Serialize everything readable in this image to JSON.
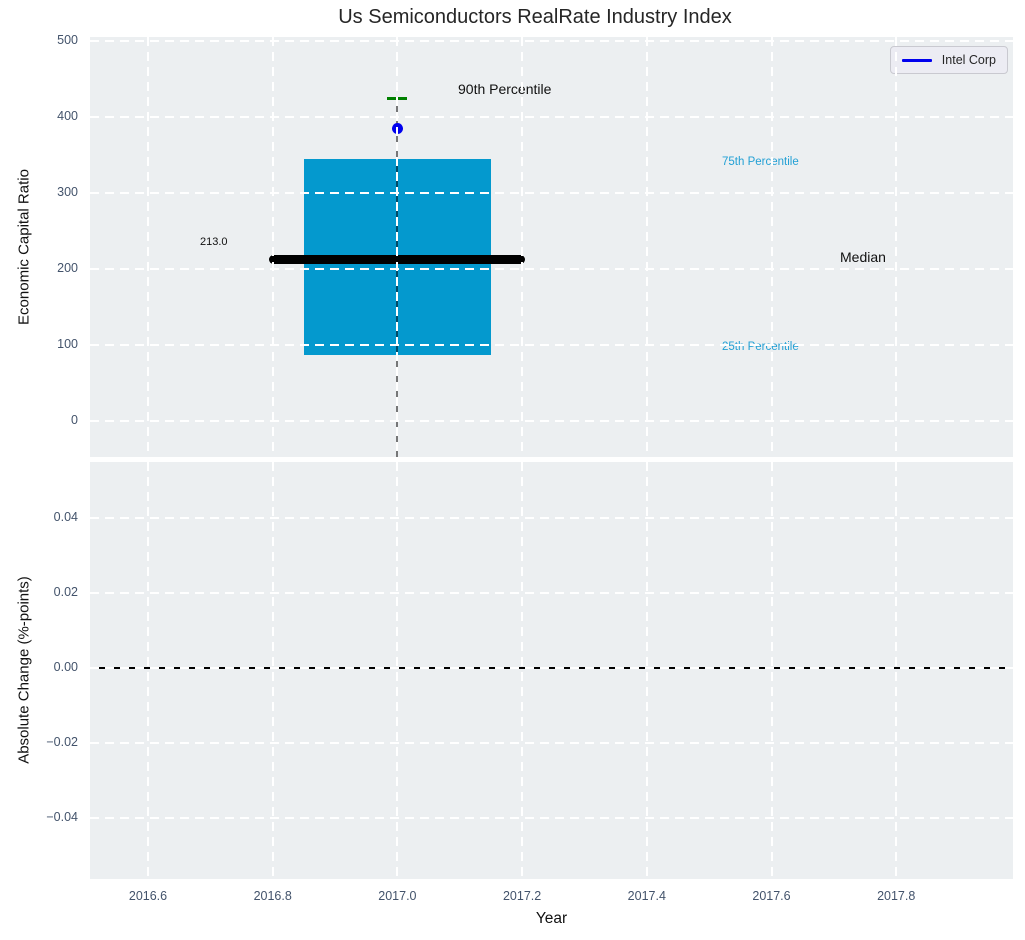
{
  "colors": {
    "box": "#0499ce",
    "median": "#000000",
    "p90_cap": "#008000",
    "intel": "#0000ee",
    "percentile_text": "#22a0d5",
    "plot_bg": "#eceff1",
    "grid": "#ffffff",
    "tick_text": "#43536b",
    "zero_line": "#000000"
  },
  "chart_data": {
    "type": "box",
    "title": "Us Semiconductors RealRate Industry Index",
    "xlabel": "Year",
    "xlim": [
      2016.51,
      2017.99
    ],
    "x_ticks": [
      2016.6,
      2016.8,
      2017.0,
      2017.2,
      2017.4,
      2017.6,
      2017.8
    ],
    "x_tick_labels": [
      "2016.6",
      "2016.8",
      "2017.0",
      "2017.2",
      "2017.4",
      "2017.6",
      "2017.8"
    ],
    "grid": true,
    "grid_style": "white dashed on light gray background",
    "subplots": [
      {
        "name": "economic-capital-ratio",
        "ylabel": "Economic Capital Ratio",
        "ylim": [
          -47,
          505
        ],
        "y_ticks": [
          500,
          400,
          300,
          200,
          100,
          0
        ],
        "y_tick_labels": [
          "500",
          "400",
          "300",
          "200",
          "100",
          "0"
        ],
        "series": [
          {
            "name": "industry-distribution-box",
            "type": "box",
            "x": 2017.0,
            "p25": 87,
            "median": 213.0,
            "p75": 345,
            "p90": 425,
            "whisker_low_clipped_below_axis": true
          },
          {
            "name": "Intel Corp",
            "type": "scatter",
            "x": 2017.0,
            "y": 385
          }
        ],
        "annotations": [
          {
            "text": "90th Percentile",
            "x": 2017.1,
            "y": 435,
            "color": "#111111"
          },
          {
            "text": "75th Percentile",
            "x": 2017.52,
            "y": 338,
            "color": "#22a0d5"
          },
          {
            "text": "25th Percentile",
            "x": 2017.52,
            "y": 95,
            "color": "#22a0d5"
          },
          {
            "text": "Median",
            "x": 2017.71,
            "y": 210,
            "color": "#111111"
          },
          {
            "text": "213.0",
            "x": 2016.68,
            "y": 228,
            "color": "#111111"
          }
        ],
        "legend": {
          "entries": [
            "Intel Corp"
          ],
          "position": "upper right"
        }
      },
      {
        "name": "absolute-change",
        "ylabel": "Absolute Change (%-points)",
        "ylim": [
          -0.056,
          0.055
        ],
        "y_ticks": [
          0.04,
          0.02,
          0.0,
          -0.02,
          -0.04
        ],
        "y_tick_labels": [
          "0.04",
          "0.02",
          "0.00",
          "−0.02",
          "−0.04"
        ],
        "zero_line": 0.0,
        "series": []
      }
    ]
  }
}
